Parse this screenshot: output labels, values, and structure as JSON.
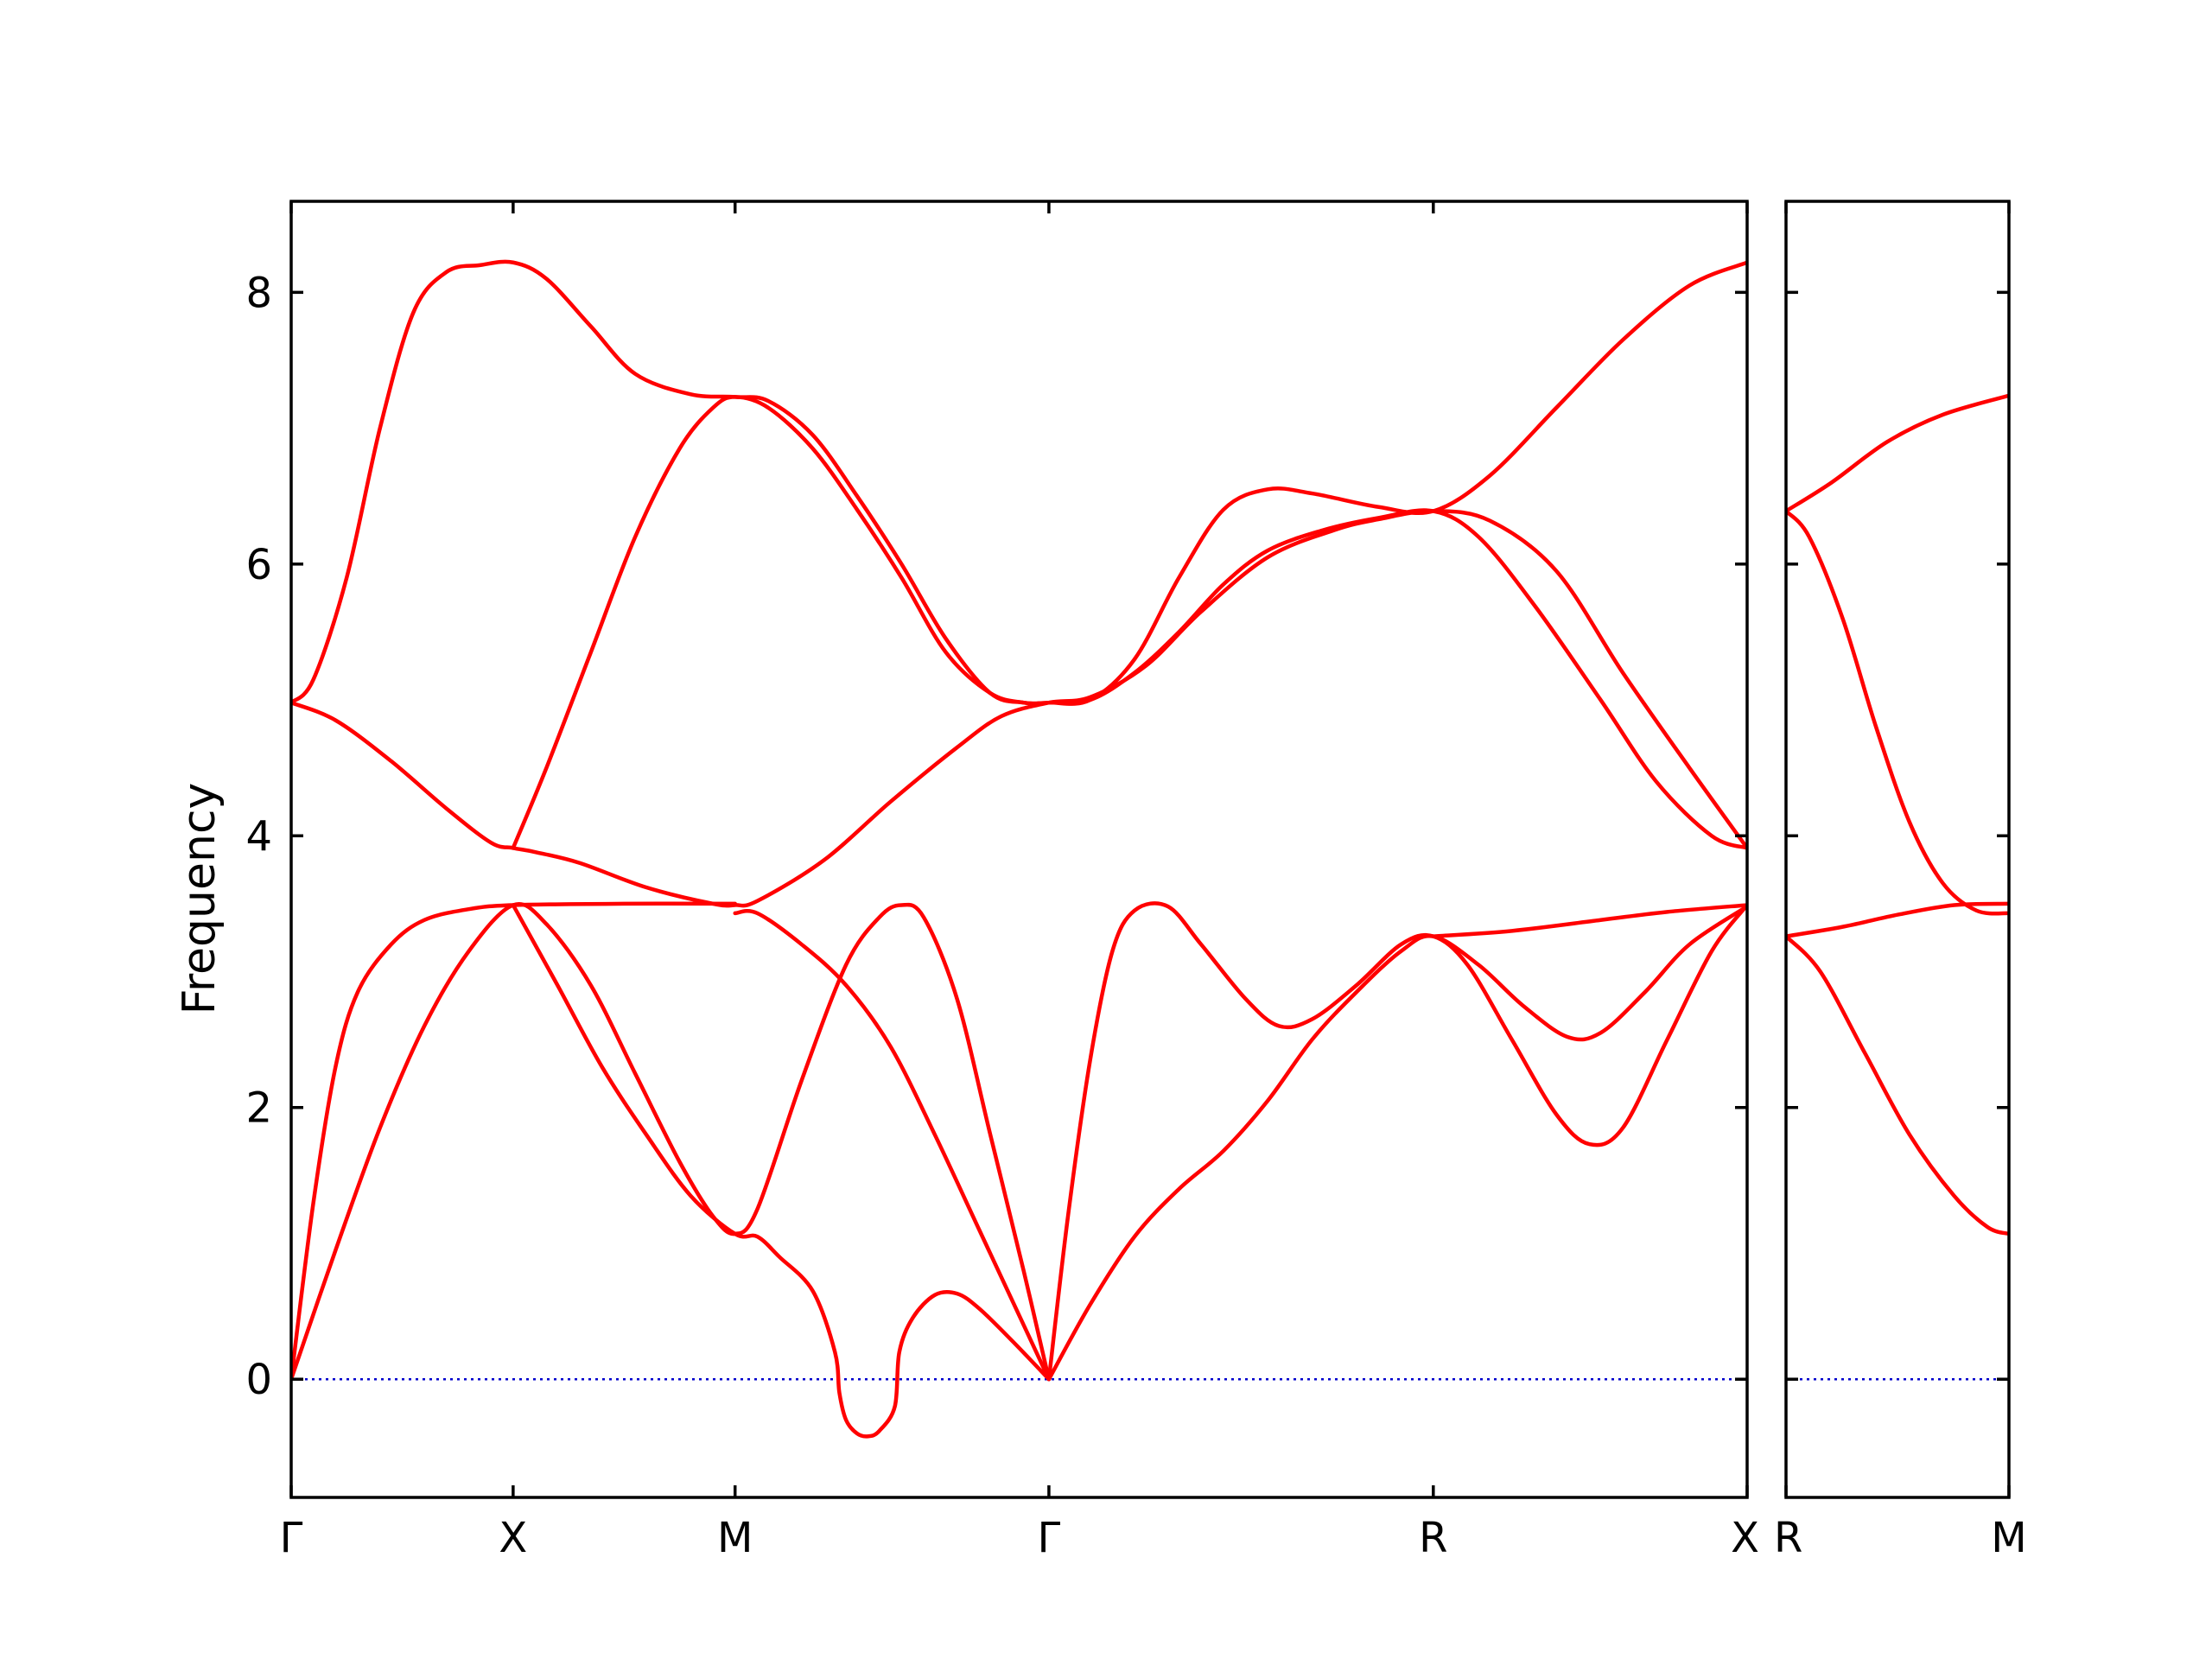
{
  "chart_data": {
    "type": "line",
    "title": "",
    "ylabel": "Frequency",
    "ylim": [
      -0.87,
      8.67
    ],
    "yticks": [
      0,
      2,
      4,
      6,
      8
    ],
    "grid": false,
    "colors": {
      "bands": "#ff0000",
      "zero_line": "#0000cc",
      "axes": "#000000"
    },
    "segments": [
      {
        "path": [
          "Γ",
          "X",
          "M",
          "Γ",
          "R",
          "X"
        ],
        "path_labels": [
          "Γ",
          "X",
          "M",
          "Γ",
          "R",
          "X"
        ],
        "path_positions": [
          0,
          1,
          2,
          3.414,
          5.146,
          6.56
        ],
        "series": [
          {
            "points": [
              [
                0,
                4.98
              ],
              [
                0.1,
                5.15
              ],
              [
                0.25,
                5.9
              ],
              [
                0.4,
                7.0
              ],
              [
                0.55,
                7.85
              ],
              [
                0.7,
                8.15
              ],
              [
                0.85,
                8.2
              ],
              [
                1.0,
                8.22
              ],
              [
                1.15,
                8.1
              ],
              [
                1.35,
                7.75
              ],
              [
                1.55,
                7.4
              ],
              [
                1.8,
                7.25
              ],
              [
                2.0,
                7.23
              ],
              [
                2.15,
                7.2
              ],
              [
                2.35,
                6.95
              ],
              [
                2.55,
                6.5
              ],
              [
                2.75,
                6.0
              ],
              [
                2.95,
                5.45
              ],
              [
                3.15,
                5.05
              ],
              [
                3.3,
                4.98
              ],
              [
                3.414,
                4.98
              ],
              [
                3.6,
                5.0
              ],
              [
                3.8,
                5.3
              ],
              [
                4.0,
                5.9
              ],
              [
                4.2,
                6.4
              ],
              [
                4.4,
                6.55
              ],
              [
                4.6,
                6.52
              ],
              [
                4.9,
                6.42
              ],
              [
                5.146,
                6.39
              ],
              [
                5.4,
                6.65
              ],
              [
                5.7,
                7.15
              ],
              [
                6.0,
                7.65
              ],
              [
                6.3,
                8.05
              ],
              [
                6.56,
                8.22
              ]
            ]
          },
          {
            "points": [
              [
                0,
                4.98
              ],
              [
                0.2,
                4.85
              ],
              [
                0.45,
                4.55
              ],
              [
                0.7,
                4.2
              ],
              [
                0.9,
                3.95
              ],
              [
                1.0,
                3.91
              ],
              [
                1.1,
                3.88
              ],
              [
                1.3,
                3.8
              ],
              [
                1.6,
                3.62
              ],
              [
                1.9,
                3.5
              ],
              [
                2.0,
                3.49
              ],
              [
                2.1,
                3.52
              ],
              [
                2.4,
                3.82
              ],
              [
                2.7,
                4.25
              ],
              [
                3.0,
                4.65
              ],
              [
                3.2,
                4.88
              ],
              [
                3.414,
                4.98
              ],
              [
                3.6,
                5.02
              ],
              [
                3.85,
                5.25
              ],
              [
                4.1,
                5.65
              ],
              [
                4.4,
                6.05
              ],
              [
                4.7,
                6.25
              ],
              [
                4.9,
                6.33
              ],
              [
                5.146,
                6.39
              ],
              [
                5.4,
                6.32
              ],
              [
                5.7,
                5.95
              ],
              [
                6.0,
                5.2
              ],
              [
                6.3,
                4.5
              ],
              [
                6.56,
                3.91
              ]
            ]
          },
          {
            "points": [
              [
                1.0,
                3.91
              ],
              [
                1.15,
                4.5
              ],
              [
                1.35,
                5.35
              ],
              [
                1.55,
                6.2
              ],
              [
                1.75,
                6.85
              ],
              [
                1.9,
                7.15
              ],
              [
                2.0,
                7.23
              ],
              [
                2.15,
                7.15
              ],
              [
                2.35,
                6.85
              ],
              [
                2.55,
                6.4
              ],
              [
                2.75,
                5.9
              ],
              [
                2.95,
                5.35
              ],
              [
                3.15,
                5.05
              ],
              [
                3.3,
                4.98
              ],
              [
                3.414,
                4.98
              ],
              [
                3.6,
                5.0
              ],
              [
                3.8,
                5.2
              ],
              [
                4.0,
                5.5
              ],
              [
                4.2,
                5.85
              ],
              [
                4.4,
                6.1
              ],
              [
                4.65,
                6.25
              ],
              [
                4.9,
                6.34
              ],
              [
                5.146,
                6.39
              ],
              [
                5.35,
                6.2
              ],
              [
                5.6,
                5.7
              ],
              [
                5.9,
                5.0
              ],
              [
                6.15,
                4.4
              ],
              [
                6.4,
                4.0
              ],
              [
                6.56,
                3.91
              ]
            ]
          },
          {
            "points": [
              [
                0,
                0
              ],
              [
                0.1,
                1.3
              ],
              [
                0.2,
                2.3
              ],
              [
                0.3,
                2.85
              ],
              [
                0.45,
                3.2
              ],
              [
                0.6,
                3.38
              ],
              [
                0.8,
                3.46
              ],
              [
                1.0,
                3.49
              ],
              [
                1.5,
                3.5
              ],
              [
                2.0,
                3.5
              ]
            ]
          },
          {
            "points": [
              [
                0,
                0
              ],
              [
                0.2,
                0.95
              ],
              [
                0.4,
                1.85
              ],
              [
                0.6,
                2.6
              ],
              [
                0.8,
                3.15
              ],
              [
                1.0,
                3.49
              ],
              [
                1.15,
                3.35
              ],
              [
                1.35,
                2.9
              ],
              [
                1.55,
                2.25
              ],
              [
                1.75,
                1.6
              ],
              [
                1.9,
                1.2
              ],
              [
                2.0,
                1.07
              ],
              [
                2.1,
                1.25
              ],
              [
                2.3,
                2.2
              ],
              [
                2.5,
                3.05
              ],
              [
                2.65,
                3.4
              ],
              [
                2.75,
                3.49
              ],
              [
                2.85,
                3.4
              ],
              [
                3.0,
                2.8
              ],
              [
                3.15,
                1.8
              ],
              [
                3.3,
                0.8
              ],
              [
                3.414,
                0
              ]
            ]
          },
          {
            "points": [
              [
                1.0,
                3.49
              ],
              [
                1.2,
                2.9
              ],
              [
                1.4,
                2.3
              ],
              [
                1.6,
                1.8
              ],
              [
                1.8,
                1.35
              ],
              [
                2.0,
                1.07
              ],
              [
                2.1,
                1.05
              ],
              [
                2.2,
                0.9
              ],
              [
                2.35,
                0.65
              ],
              [
                2.45,
                0.2
              ],
              [
                2.47,
                -0.1
              ],
              [
                2.5,
                -0.3
              ],
              [
                2.55,
                -0.4
              ],
              [
                2.6,
                -0.42
              ],
              [
                2.65,
                -0.38
              ],
              [
                2.72,
                -0.2
              ],
              [
                2.74,
                0.2
              ],
              [
                2.8,
                0.45
              ],
              [
                2.9,
                0.62
              ],
              [
                3.0,
                0.63
              ],
              [
                3.1,
                0.52
              ],
              [
                3.25,
                0.28
              ],
              [
                3.414,
                0
              ]
            ]
          },
          {
            "points": [
              [
                2.0,
                3.43
              ],
              [
                2.1,
                3.43
              ],
              [
                2.3,
                3.2
              ],
              [
                2.5,
                2.9
              ],
              [
                2.7,
                2.45
              ],
              [
                2.9,
                1.8
              ],
              [
                3.1,
                1.1
              ],
              [
                3.3,
                0.4
              ],
              [
                3.414,
                0
              ]
            ]
          },
          {
            "points": [
              [
                3.414,
                0
              ],
              [
                3.5,
                1.2
              ],
              [
                3.6,
                2.35
              ],
              [
                3.7,
                3.15
              ],
              [
                3.8,
                3.45
              ],
              [
                3.95,
                3.48
              ],
              [
                4.1,
                3.2
              ],
              [
                4.3,
                2.8
              ],
              [
                4.45,
                2.6
              ],
              [
                4.6,
                2.65
              ],
              [
                4.8,
                2.9
              ],
              [
                5.0,
                3.2
              ],
              [
                5.146,
                3.26
              ],
              [
                5.3,
                3.05
              ],
              [
                5.5,
                2.5
              ],
              [
                5.7,
                1.95
              ],
              [
                5.85,
                1.73
              ],
              [
                6.0,
                1.85
              ],
              [
                6.2,
                2.5
              ],
              [
                6.4,
                3.15
              ],
              [
                6.56,
                3.49
              ]
            ]
          },
          {
            "points": [
              [
                3.414,
                0
              ],
              [
                3.6,
                0.55
              ],
              [
                3.8,
                1.05
              ],
              [
                4.0,
                1.4
              ],
              [
                4.2,
                1.68
              ],
              [
                4.4,
                2.05
              ],
              [
                4.6,
                2.5
              ],
              [
                4.8,
                2.85
              ],
              [
                5.0,
                3.15
              ],
              [
                5.146,
                3.26
              ],
              [
                5.35,
                3.05
              ],
              [
                5.55,
                2.75
              ],
              [
                5.75,
                2.52
              ],
              [
                5.9,
                2.55
              ],
              [
                6.1,
                2.85
              ],
              [
                6.3,
                3.2
              ],
              [
                6.56,
                3.48
              ]
            ]
          },
          {
            "points": [
              [
                5.146,
                3.26
              ],
              [
                5.5,
                3.3
              ],
              [
                5.9,
                3.38
              ],
              [
                6.2,
                3.44
              ],
              [
                6.56,
                3.49
              ]
            ]
          }
        ]
      },
      {
        "path": [
          "R",
          "M"
        ],
        "path_labels": [
          "R",
          "M"
        ],
        "path_positions": [
          5.146,
          6.146
        ],
        "series": [
          {
            "points": [
              [
                5.146,
                6.39
              ],
              [
                5.35,
                6.6
              ],
              [
                5.6,
                6.9
              ],
              [
                5.85,
                7.1
              ],
              [
                6.146,
                7.24
              ]
            ]
          },
          {
            "points": [
              [
                5.146,
                6.39
              ],
              [
                5.25,
                6.2
              ],
              [
                5.4,
                5.6
              ],
              [
                5.55,
                4.8
              ],
              [
                5.7,
                4.1
              ],
              [
                5.85,
                3.65
              ],
              [
                6.0,
                3.45
              ],
              [
                6.146,
                3.43
              ]
            ]
          },
          {
            "points": [
              [
                5.146,
                3.26
              ],
              [
                5.4,
                3.33
              ],
              [
                5.65,
                3.42
              ],
              [
                5.9,
                3.49
              ],
              [
                6.146,
                3.5
              ]
            ]
          },
          {
            "points": [
              [
                5.146,
                3.26
              ],
              [
                5.3,
                3.0
              ],
              [
                5.5,
                2.4
              ],
              [
                5.7,
                1.8
              ],
              [
                5.9,
                1.35
              ],
              [
                6.05,
                1.12
              ],
              [
                6.146,
                1.07
              ]
            ]
          }
        ]
      }
    ]
  }
}
